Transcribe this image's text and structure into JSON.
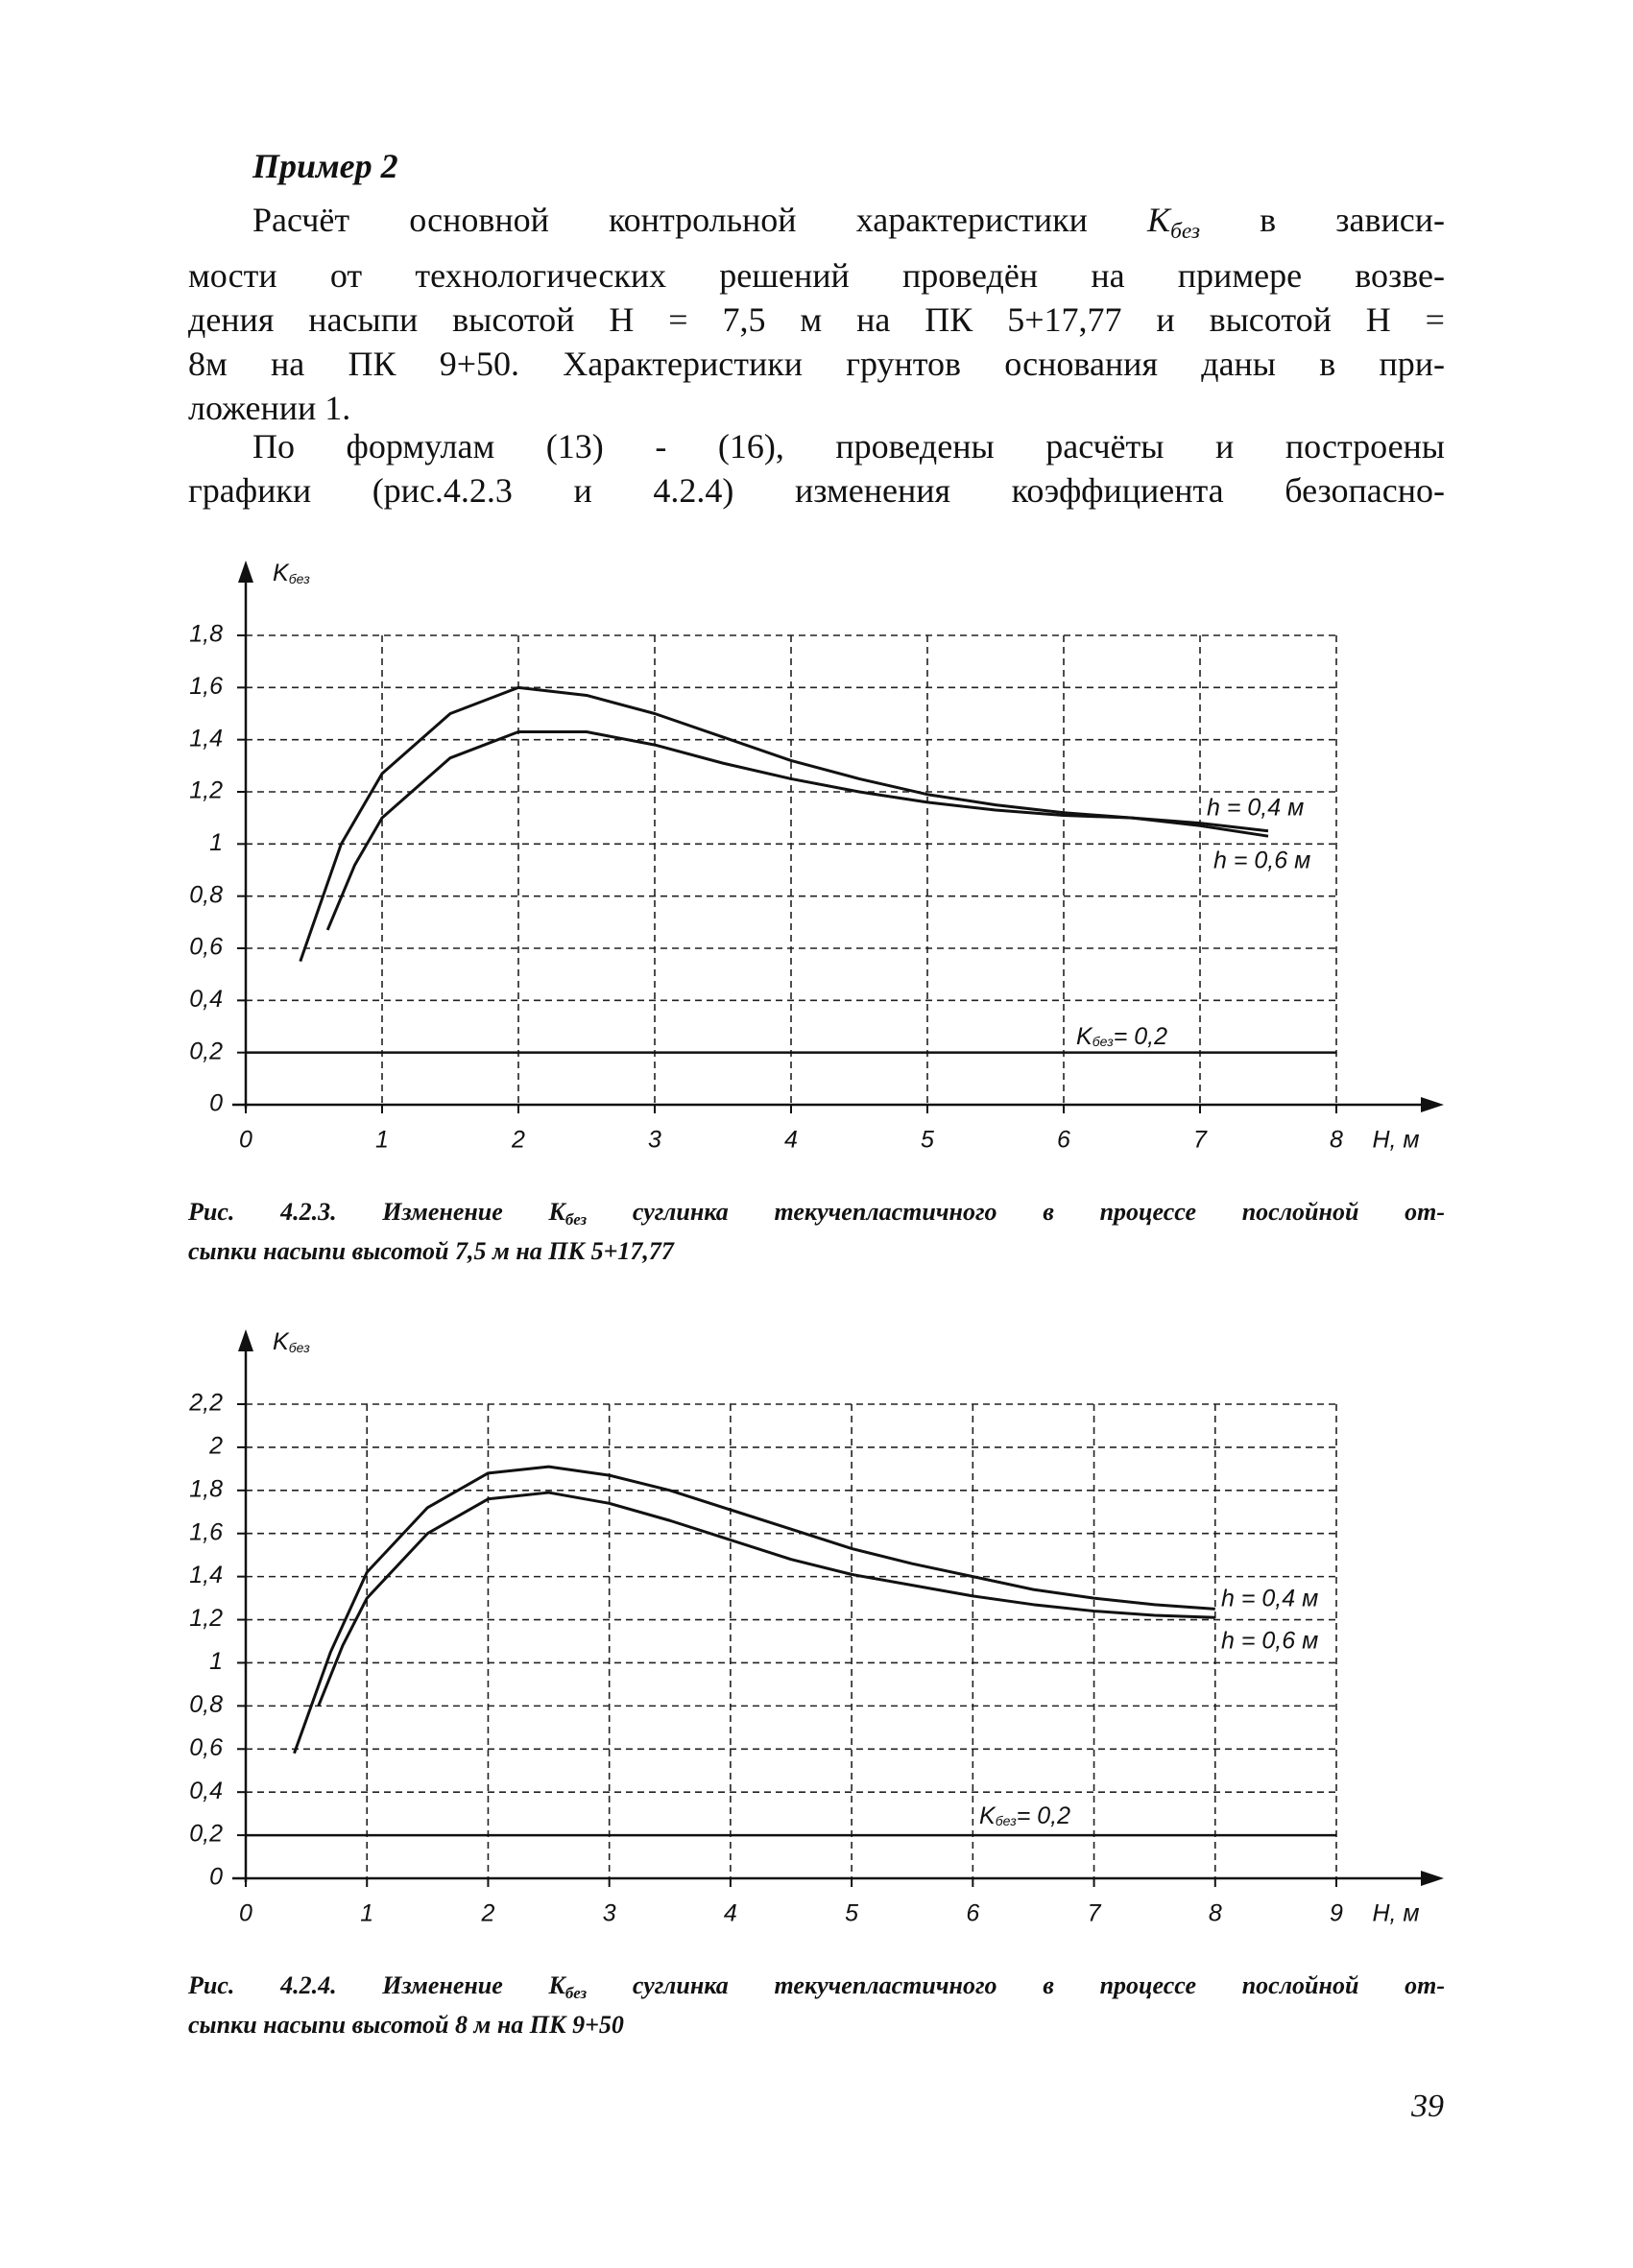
{
  "header": {
    "title": "Пример 2"
  },
  "paragraphs": [
    {
      "lines": [
        [
          "Расчёт основной контрольной характеристики ",
          "K",
          "без",
          " в зависи-"
        ],
        "мости от технологических решений проведён на примере возве-",
        "дения насыпи высотой Н = 7,5 м на ПК 5+17,77 и высотой Н =",
        "8м на ПК 9+50. Характеристики грунтов основания даны в при-",
        "ложении 1."
      ]
    },
    {
      "lines": [
        "По формулам (13) - (16), проведены расчёты и построены",
        "графики (рис.4.2.3 и 4.2.4) изменения коэффициента безопасно-"
      ]
    }
  ],
  "chart_data": [
    {
      "type": "line",
      "y_label": [
        "K",
        "без"
      ],
      "x_label": "Н, м",
      "xlim": [
        0,
        8
      ],
      "xticks": [
        0,
        1,
        2,
        3,
        4,
        5,
        6,
        7,
        8
      ],
      "ylim": [
        0,
        1.8
      ],
      "yticks": [
        0,
        {
          "value": 0.2,
          "label": "0,2"
        },
        {
          "value": 0.4,
          "label": "0,4"
        },
        {
          "value": 0.6,
          "label": "0,6"
        },
        {
          "value": 0.8,
          "label": "0,8"
        },
        1,
        {
          "value": 1.2,
          "label": "1,2"
        },
        {
          "value": 1.4,
          "label": "1,4"
        },
        {
          "value": 1.6,
          "label": "1,6"
        },
        {
          "value": 1.8,
          "label": "1,8"
        }
      ],
      "grid": true,
      "series": [
        {
          "name": "h = 0,4 м",
          "color": "#111111",
          "x": [
            0.4,
            0.7,
            1,
            1.5,
            2,
            2.5,
            3,
            3.5,
            4,
            4.5,
            5,
            5.5,
            6,
            6.5,
            7,
            7.5
          ],
          "values": [
            0.55,
            1.0,
            1.27,
            1.5,
            1.6,
            1.57,
            1.5,
            1.41,
            1.32,
            1.25,
            1.19,
            1.15,
            1.12,
            1.1,
            1.07,
            1.03
          ]
        },
        {
          "name": "h = 0,6 м",
          "color": "#111111",
          "x": [
            0.6,
            0.8,
            1,
            1.5,
            2,
            2.5,
            3,
            3.5,
            4,
            4.5,
            5,
            5.5,
            6,
            6.5,
            7,
            7.5
          ],
          "values": [
            0.67,
            0.92,
            1.1,
            1.33,
            1.43,
            1.43,
            1.38,
            1.31,
            1.25,
            1.2,
            1.16,
            1.13,
            1.11,
            1.1,
            1.08,
            1.05
          ]
        }
      ],
      "threshold": {
        "value": 0.2,
        "label": [
          "K",
          "без",
          "= 0,2"
        ]
      },
      "caption": {
        "lines": [
          [
            "Рис.  4.2.3. Изменение ",
            "K",
            "без",
            " суглинка текучепластичного в процессе послойной от-"
          ],
          "сыпки насыпи высотой 7,5 м на ПК 5+17,77"
        ]
      }
    },
    {
      "type": "line",
      "y_label": [
        "K",
        "без"
      ],
      "x_label": "Н, м",
      "xlim": [
        0,
        9
      ],
      "xticks": [
        0,
        1,
        2,
        3,
        4,
        5,
        6,
        7,
        8,
        9
      ],
      "ylim": [
        0,
        2.2
      ],
      "yticks": [
        0,
        {
          "value": 0.2,
          "label": "0,2"
        },
        {
          "value": 0.4,
          "label": "0,4"
        },
        {
          "value": 0.6,
          "label": "0,6"
        },
        {
          "value": 0.8,
          "label": "0,8"
        },
        1,
        {
          "value": 1.2,
          "label": "1,2"
        },
        {
          "value": 1.4,
          "label": "1,4"
        },
        {
          "value": 1.6,
          "label": "1,6"
        },
        {
          "value": 1.8,
          "label": "1,8"
        },
        2,
        {
          "value": 2.2,
          "label": "2,2"
        }
      ],
      "grid": true,
      "series": [
        {
          "name": "h = 0,4 м",
          "color": "#111111",
          "x": [
            0.4,
            0.7,
            1,
            1.5,
            2,
            2.5,
            3,
            3.5,
            4,
            4.5,
            5,
            5.5,
            6,
            6.5,
            7,
            7.5,
            8
          ],
          "values": [
            0.58,
            1.05,
            1.42,
            1.72,
            1.88,
            1.91,
            1.87,
            1.8,
            1.71,
            1.62,
            1.53,
            1.46,
            1.4,
            1.34,
            1.3,
            1.27,
            1.25
          ]
        },
        {
          "name": "h = 0,6 м",
          "color": "#111111",
          "x": [
            0.6,
            0.8,
            1,
            1.5,
            2,
            2.5,
            3,
            3.5,
            4,
            4.5,
            5,
            5.5,
            6,
            6.5,
            7,
            7.5,
            8
          ],
          "values": [
            0.8,
            1.08,
            1.3,
            1.6,
            1.76,
            1.79,
            1.74,
            1.66,
            1.57,
            1.48,
            1.41,
            1.36,
            1.31,
            1.27,
            1.24,
            1.22,
            1.21
          ]
        }
      ],
      "threshold": {
        "value": 0.2,
        "label": [
          "K",
          "без",
          "= 0,2"
        ]
      },
      "caption": {
        "lines": [
          [
            "Рис.  4.2.4. Изменение ",
            "K",
            "без",
            " суглинка текучепластичного в процессе послойной от-"
          ],
          "сыпки насыпи высотой 8 м на ПК 9+50"
        ]
      }
    }
  ],
  "page_number": "39"
}
